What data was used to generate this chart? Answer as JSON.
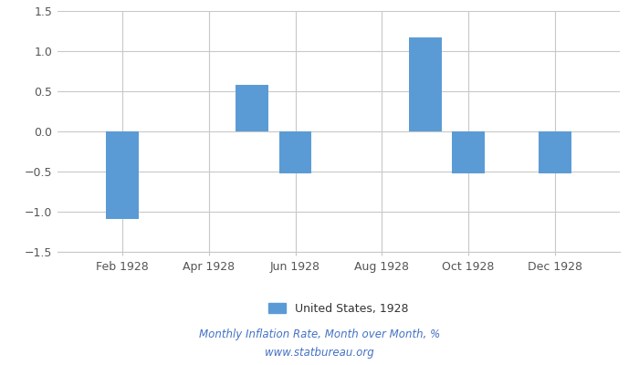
{
  "month_nums": [
    2,
    5,
    6,
    9,
    10,
    12
  ],
  "values": [
    -1.09,
    0.58,
    -0.52,
    1.17,
    -0.52,
    -0.52
  ],
  "bar_color": "#5b9bd5",
  "ylim": [
    -1.5,
    1.5
  ],
  "yticks": [
    -1.5,
    -1.0,
    -0.5,
    0,
    0.5,
    1.0,
    1.5
  ],
  "xtick_labels": [
    "Feb 1928",
    "Apr 1928",
    "Jun 1928",
    "Aug 1928",
    "Oct 1928",
    "Dec 1928"
  ],
  "xtick_positions": [
    2,
    4,
    6,
    8,
    10,
    12
  ],
  "legend_label": "United States, 1928",
  "caption_line1": "Monthly Inflation Rate, Month over Month, %",
  "caption_line2": "www.statbureau.org",
  "background_color": "#ffffff",
  "grid_color": "#c8c8c8",
  "bar_width": 0.75,
  "caption_color": "#4472c4",
  "tick_color": "#555555",
  "font_color": "#333333"
}
